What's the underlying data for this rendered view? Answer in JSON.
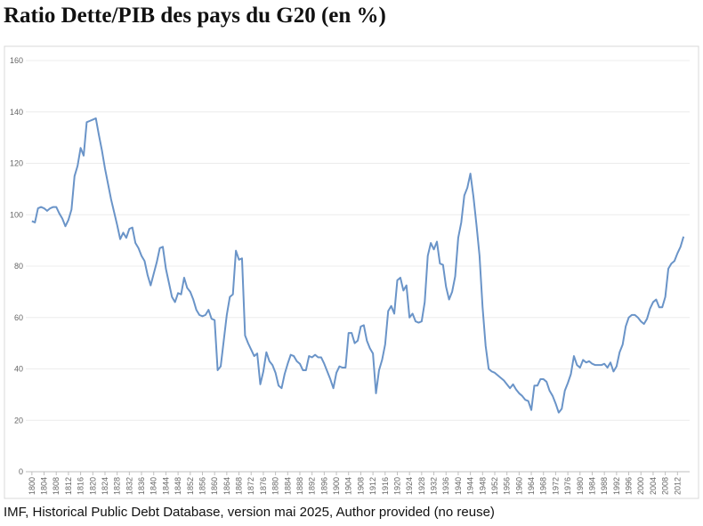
{
  "chart_data": {
    "type": "line",
    "title": "Ratio Dette/PIB des pays du G20 (en %)",
    "source": "IMF, Historical Public Debt Database, version mai 2025, Author provided (no reuse)",
    "x": [
      1800,
      1801,
      1802,
      1803,
      1804,
      1805,
      1806,
      1807,
      1808,
      1809,
      1810,
      1811,
      1812,
      1813,
      1814,
      1815,
      1816,
      1817,
      1818,
      1819,
      1820,
      1821,
      1822,
      1823,
      1824,
      1825,
      1826,
      1827,
      1828,
      1829,
      1830,
      1831,
      1832,
      1833,
      1834,
      1835,
      1836,
      1837,
      1838,
      1839,
      1840,
      1841,
      1842,
      1843,
      1844,
      1845,
      1846,
      1847,
      1848,
      1849,
      1850,
      1851,
      1852,
      1853,
      1854,
      1855,
      1856,
      1857,
      1858,
      1859,
      1860,
      1861,
      1862,
      1863,
      1864,
      1865,
      1866,
      1867,
      1868,
      1869,
      1870,
      1871,
      1872,
      1873,
      1874,
      1875,
      1876,
      1877,
      1878,
      1879,
      1880,
      1881,
      1882,
      1883,
      1884,
      1885,
      1886,
      1887,
      1888,
      1889,
      1890,
      1891,
      1892,
      1893,
      1894,
      1895,
      1896,
      1897,
      1898,
      1899,
      1900,
      1901,
      1902,
      1903,
      1904,
      1905,
      1906,
      1907,
      1908,
      1909,
      1910,
      1911,
      1912,
      1913,
      1914,
      1915,
      1916,
      1917,
      1918,
      1919,
      1920,
      1921,
      1922,
      1923,
      1924,
      1925,
      1926,
      1927,
      1928,
      1929,
      1930,
      1931,
      1932,
      1933,
      1934,
      1935,
      1936,
      1937,
      1938,
      1939,
      1940,
      1941,
      1942,
      1943,
      1944,
      1945,
      1946,
      1947,
      1948,
      1949,
      1950,
      1951,
      1952,
      1953,
      1954,
      1955,
      1956,
      1957,
      1958,
      1959,
      1960,
      1961,
      1962,
      1963,
      1964,
      1965,
      1966,
      1967,
      1968,
      1969,
      1970,
      1971,
      1972,
      1973,
      1974,
      1975,
      1976,
      1977,
      1978,
      1979,
      1980,
      1981,
      1982,
      1983,
      1984,
      1985,
      1986,
      1987,
      1988,
      1989,
      1990,
      1991,
      1992,
      1993,
      1994,
      1995,
      1996,
      1997,
      1998,
      1999,
      2000,
      2001,
      2002,
      2003,
      2004,
      2005,
      2006,
      2007,
      2008,
      2009,
      2010,
      2011,
      2012,
      2013,
      2014
    ],
    "series": [
      {
        "name": "Ratio Dette/PIB",
        "color": "#6a94c8",
        "values": [
          97.5,
          97,
          102.5,
          103,
          102.5,
          101.5,
          102.5,
          103,
          103,
          100.5,
          98.5,
          95.5,
          98,
          102,
          115,
          119,
          126,
          123,
          136,
          136.5,
          137,
          137.5,
          131,
          125,
          118,
          112,
          106,
          101,
          96,
          90.5,
          93,
          91,
          94.5,
          95,
          89,
          87,
          84,
          82,
          76.5,
          72.5,
          77,
          81.5,
          87,
          87.5,
          79,
          73.5,
          68,
          66,
          69.5,
          69,
          75.5,
          71.5,
          70,
          67,
          63,
          61,
          60.5,
          61,
          63,
          59.5,
          59,
          39.5,
          41,
          51,
          61,
          68,
          69,
          86,
          82.5,
          83,
          53,
          50,
          47.5,
          45,
          46,
          34,
          39,
          46.5,
          43,
          41.5,
          38.5,
          33.5,
          32.5,
          38,
          42,
          45.5,
          45,
          43,
          42,
          39.5,
          39.5,
          45,
          44.5,
          45.5,
          44.5,
          44.5,
          42,
          39,
          36,
          32.5,
          38.5,
          41,
          40.5,
          40.5,
          54,
          54,
          50,
          51,
          56.5,
          57,
          51,
          48,
          46,
          30.5,
          39.5,
          43.5,
          49.5,
          62.5,
          64.5,
          61.5,
          74.5,
          75.5,
          70.5,
          72.5,
          60,
          61.5,
          58.5,
          58,
          58.5,
          66,
          84,
          89,
          86.5,
          89.5,
          81,
          80.5,
          72,
          67,
          70,
          76,
          91,
          97,
          107.5,
          110.5,
          116,
          107,
          96,
          84,
          64,
          49,
          40,
          39,
          38.5,
          37.5,
          36.5,
          35.5,
          34,
          32.5,
          34,
          32,
          30.5,
          29.5,
          28,
          27.5,
          24,
          33.5,
          33.5,
          36,
          36,
          35,
          31.5,
          29.5,
          26.5,
          23,
          24.5,
          31.5,
          34.5,
          38,
          45,
          41.5,
          40.5,
          43.5,
          42.5,
          43,
          42,
          41.5,
          41.5,
          41.5,
          42,
          40.5,
          42.5,
          39,
          41,
          46.5,
          49.5,
          56.5,
          60,
          61,
          61,
          60,
          58.5,
          57.5,
          59.5,
          63.5,
          66,
          67,
          64,
          64,
          68,
          79,
          81,
          82,
          85,
          87.5,
          91.5
        ]
      }
    ],
    "xlim": [
      1798,
      2016
    ],
    "xticks": [
      1800,
      1804,
      1808,
      1812,
      1816,
      1820,
      1824,
      1828,
      1832,
      1836,
      1840,
      1844,
      1848,
      1852,
      1856,
      1860,
      1864,
      1868,
      1872,
      1876,
      1880,
      1884,
      1888,
      1892,
      1896,
      1900,
      1904,
      1908,
      1912,
      1916,
      1920,
      1924,
      1928,
      1932,
      1936,
      1940,
      1944,
      1948,
      1952,
      1956,
      1960,
      1964,
      1968,
      1972,
      1976,
      1980,
      1984,
      1988,
      1992,
      1996,
      2000,
      2004,
      2008,
      2012
    ],
    "ylim": [
      0,
      160
    ],
    "yticks": [
      0,
      20,
      40,
      60,
      80,
      100,
      120,
      140,
      160
    ],
    "grid": true
  }
}
